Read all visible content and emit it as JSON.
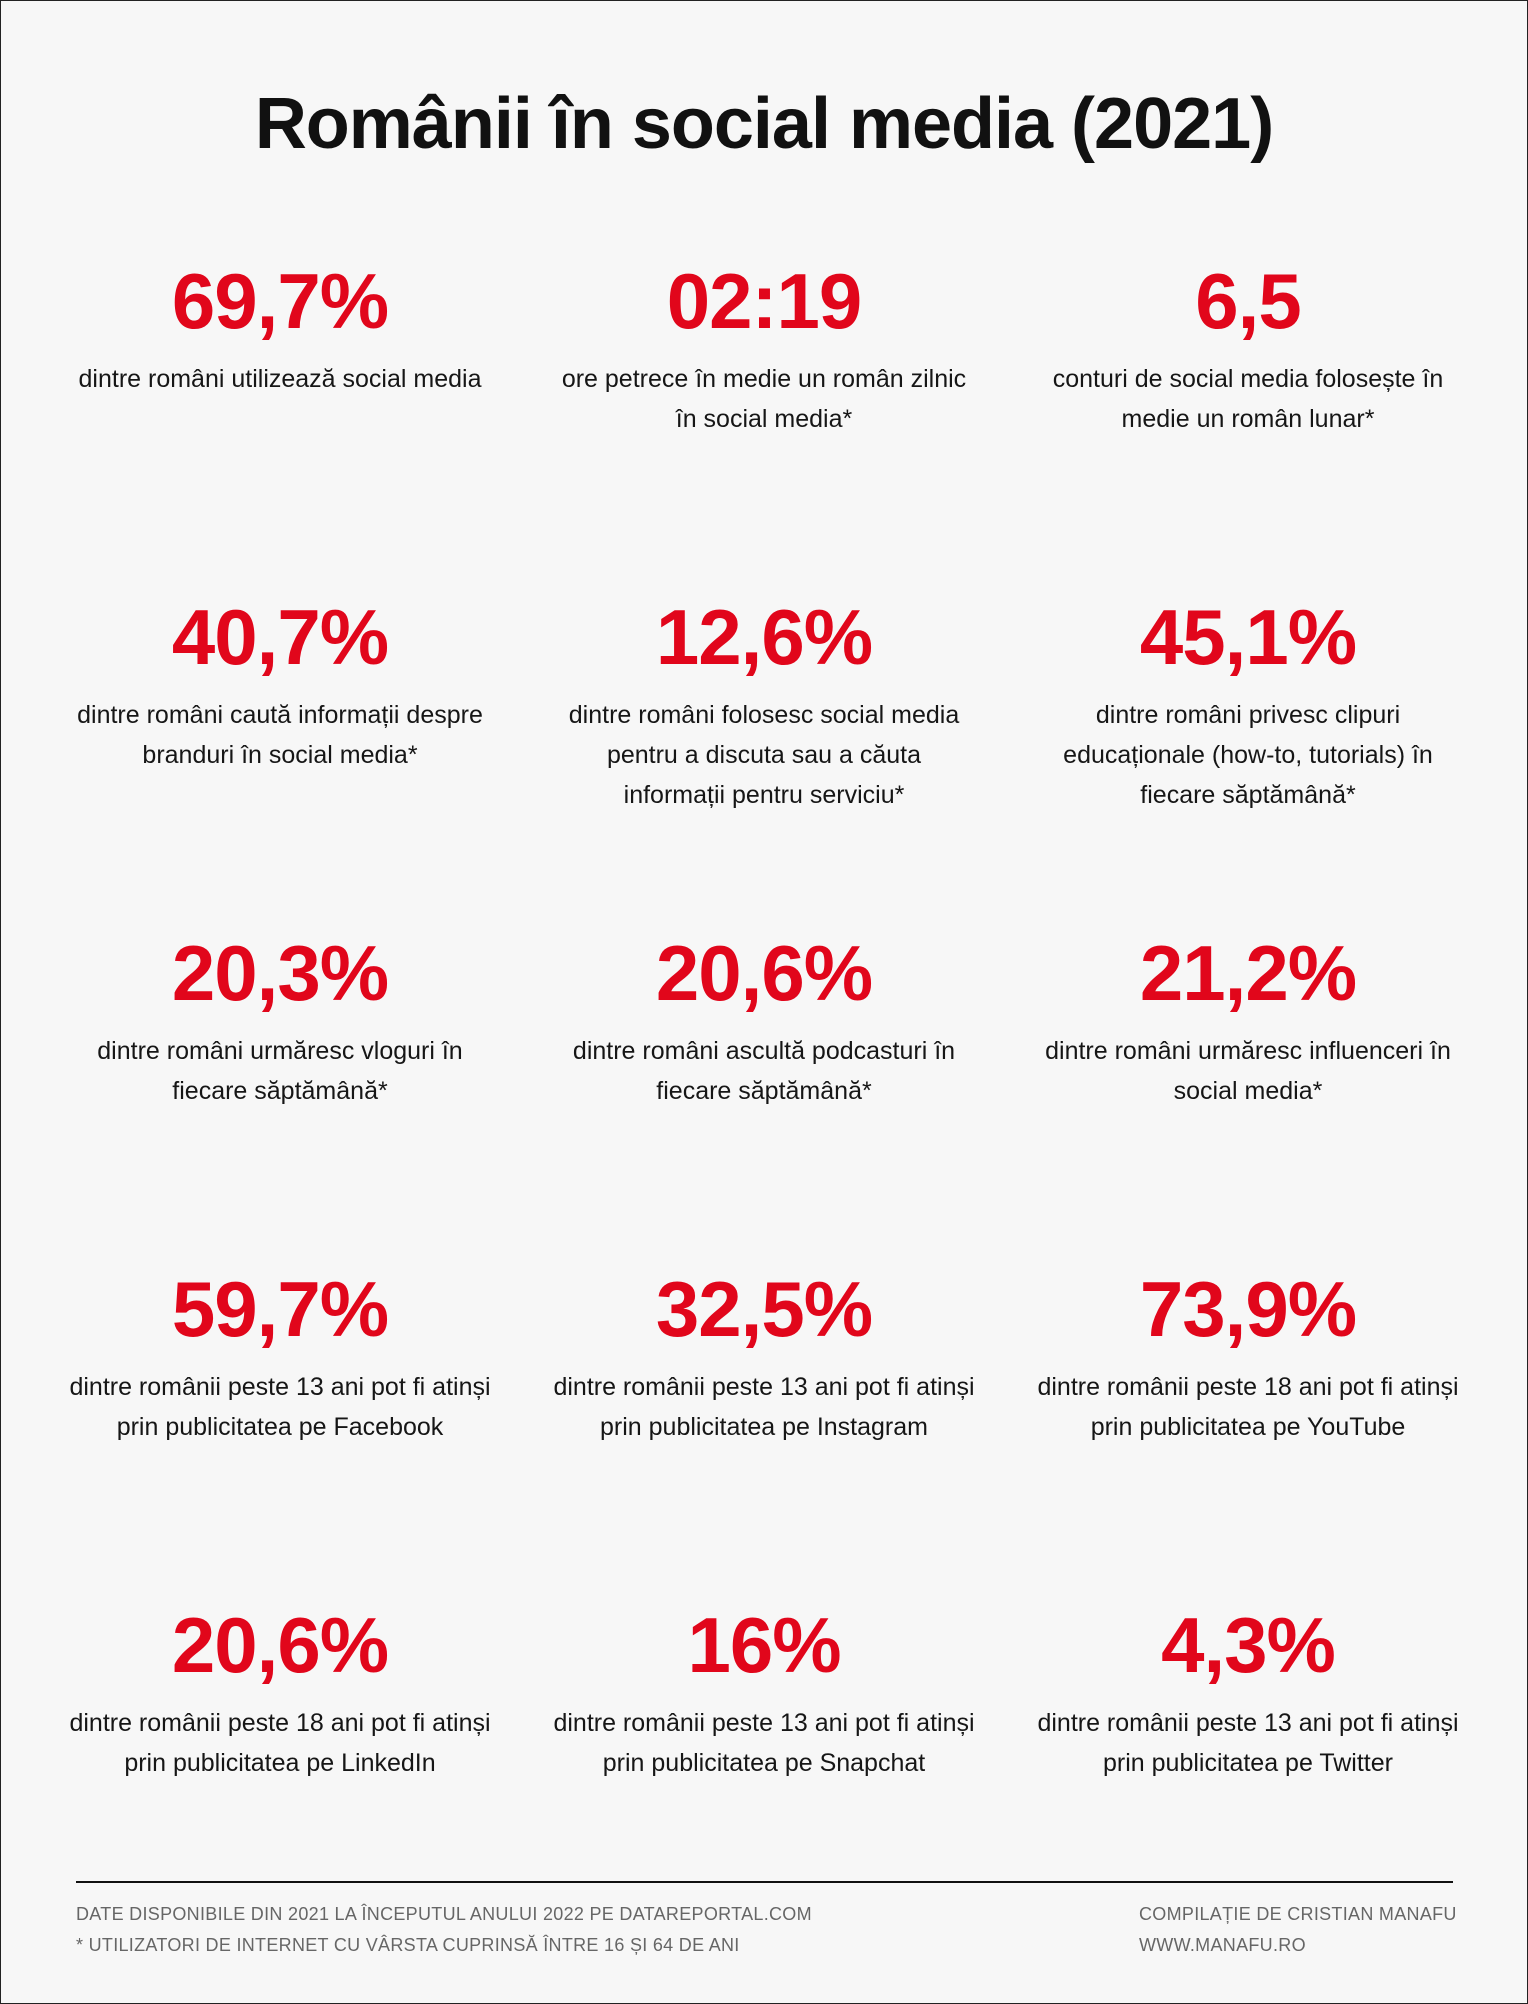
{
  "title": "Românii în social media (2021)",
  "colors": {
    "accent": "#e1061b",
    "background": "#f7f7f7",
    "text": "#111111",
    "footer_text": "#666666"
  },
  "stats": [
    {
      "value": "69,7%",
      "description": "dintre români utilizează social media"
    },
    {
      "value": "02:19",
      "description": "ore petrece în medie un român zilnic în social media*"
    },
    {
      "value": "6,5",
      "description": "conturi de social media folosește în medie un român lunar*"
    },
    {
      "value": "40,7%",
      "description": "dintre români caută informații despre branduri în social media*"
    },
    {
      "value": "12,6%",
      "description": "dintre români folosesc social media pentru a discuta sau a căuta informații pentru serviciu*"
    },
    {
      "value": "45,1%",
      "description": "dintre români privesc clipuri educaționale (how-to, tutorials) în fiecare săptămână*"
    },
    {
      "value": "20,3%",
      "description": "dintre români urmăresc vloguri în fiecare săptămână*"
    },
    {
      "value": "20,6%",
      "description": "dintre români ascultă podcasturi în fiecare săptămână*"
    },
    {
      "value": "21,2%",
      "description": "dintre români urmăresc influenceri în social media*"
    },
    {
      "value": "59,7%",
      "description": "dintre românii peste 13 ani pot fi atinși prin publicitatea pe Facebook"
    },
    {
      "value": "32,5%",
      "description": "dintre românii peste 13 ani pot fi atinși prin publicitatea pe Instagram"
    },
    {
      "value": "73,9%",
      "description": "dintre românii peste 18 ani pot fi atinși prin publicitatea pe YouTube"
    },
    {
      "value": "20,6%",
      "description": "dintre românii peste 18 ani pot fi atinși prin publicitatea pe LinkedIn"
    },
    {
      "value": "16%",
      "description": "dintre românii peste 13 ani pot fi atinși prin publicitatea pe Snapchat"
    },
    {
      "value": "4,3%",
      "description": "dintre românii peste 13 ani pot fi atinși prin publicitatea pe Twitter"
    }
  ],
  "footer": {
    "source_line": "DATE DISPONIBILE DIN 2021 LA ÎNCEPUTUL ANULUI 2022 PE DATAREPORTAL.COM",
    "footnote_line": "* UTILIZATORI DE INTERNET CU VÂRSTA CUPRINSĂ ÎNTRE 16 ȘI 64 DE ANI",
    "credit_line": "COMPILAȚIE DE CRISTIAN MANAFU",
    "website": "WWW.MANAFU.RO"
  }
}
